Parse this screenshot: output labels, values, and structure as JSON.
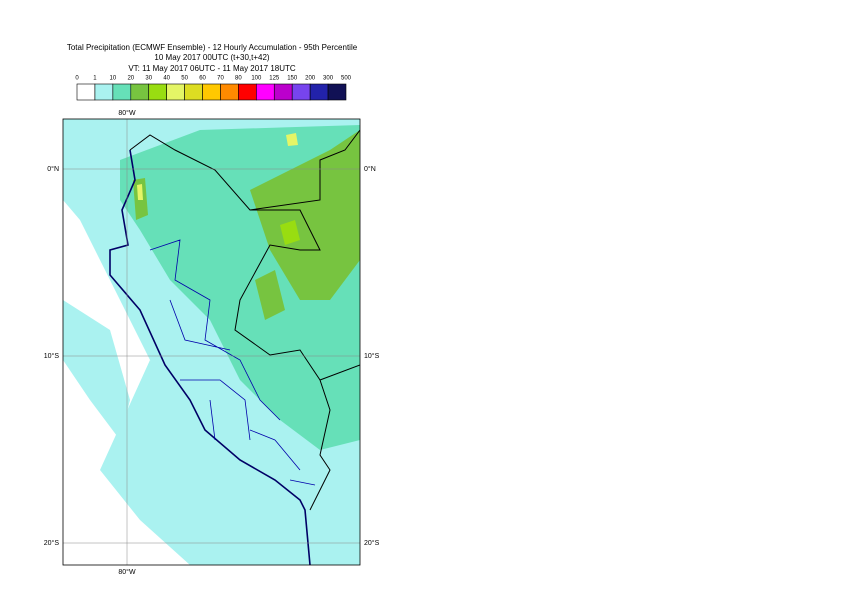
{
  "header": {
    "title": "Total Precipitation (ECMWF Ensemble) - 12 Hourly Accumulation - 95th Percentile",
    "base_time": "10 May 2017 00UTC (t+30,t+42)",
    "valid_time": "VT: 11 May 2017 06UTC - 11 May 2017 18UTC"
  },
  "legend": {
    "labels": [
      "0",
      "1",
      "10",
      "20",
      "30",
      "40",
      "50",
      "60",
      "70",
      "80",
      "100",
      "125",
      "150",
      "200",
      "300",
      "500"
    ],
    "colors": [
      "#ffffff",
      "#aaf2f0",
      "#66e0b8",
      "#77c440",
      "#99dd11",
      "#e4f566",
      "#dddd22",
      "#ffc800",
      "#ff8a00",
      "#ff0000",
      "#ff00ff",
      "#bb00cc",
      "#7744ee",
      "#2222aa",
      "#111155"
    ]
  },
  "map": {
    "lon_label_top": "80°W",
    "lon_label_bottom": "80°W",
    "lat_labels_left": [
      "0°N",
      "10°S",
      "20°S"
    ],
    "lat_labels_right": [
      "0°N",
      "10°S",
      "20°S"
    ]
  }
}
